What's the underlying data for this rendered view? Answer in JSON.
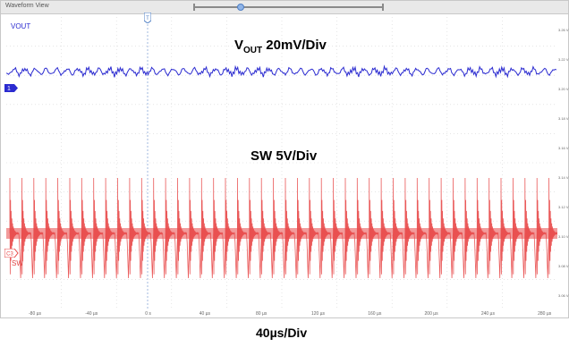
{
  "window": {
    "title": "Waveform View"
  },
  "channels": {
    "ch1": {
      "name": "VOUT",
      "marker": "1",
      "color": "#2b2bd0"
    },
    "ch2": {
      "name": "SW",
      "marker": "C3",
      "color": "#e84848"
    }
  },
  "labels": {
    "vout_main": "V",
    "vout_sub": "OUT",
    "vout_scale": " 20mV/Div",
    "sw_scale": "SW 5V/Div",
    "timebase": "40µs/Div"
  },
  "cursor": {
    "marker": "T"
  },
  "x_ticks": [
    "-80 µs",
    "-40 µs",
    "0 s",
    "40 µs",
    "80 µs",
    "120 µs",
    "160 µs",
    "200 µs",
    "240 µs",
    "280 µs"
  ],
  "y_ticks": [
    "3.26 V",
    "3.22 V",
    "3.20 V",
    "3.18 V",
    "3.16 V",
    "3.14 V",
    "3.12 V",
    "3.10 V",
    "3.08 V",
    "3.06 V"
  ],
  "chart_data": {
    "type": "line",
    "title": "",
    "xlabel": "40µs/Div",
    "series": [
      {
        "name": "VOUT",
        "scale": "20mV/Div",
        "waveform": "ripple",
        "cycles": 52
      },
      {
        "name": "SW",
        "scale": "5V/Div",
        "waveform": "switching",
        "cycles": 46
      }
    ],
    "grid": true
  }
}
